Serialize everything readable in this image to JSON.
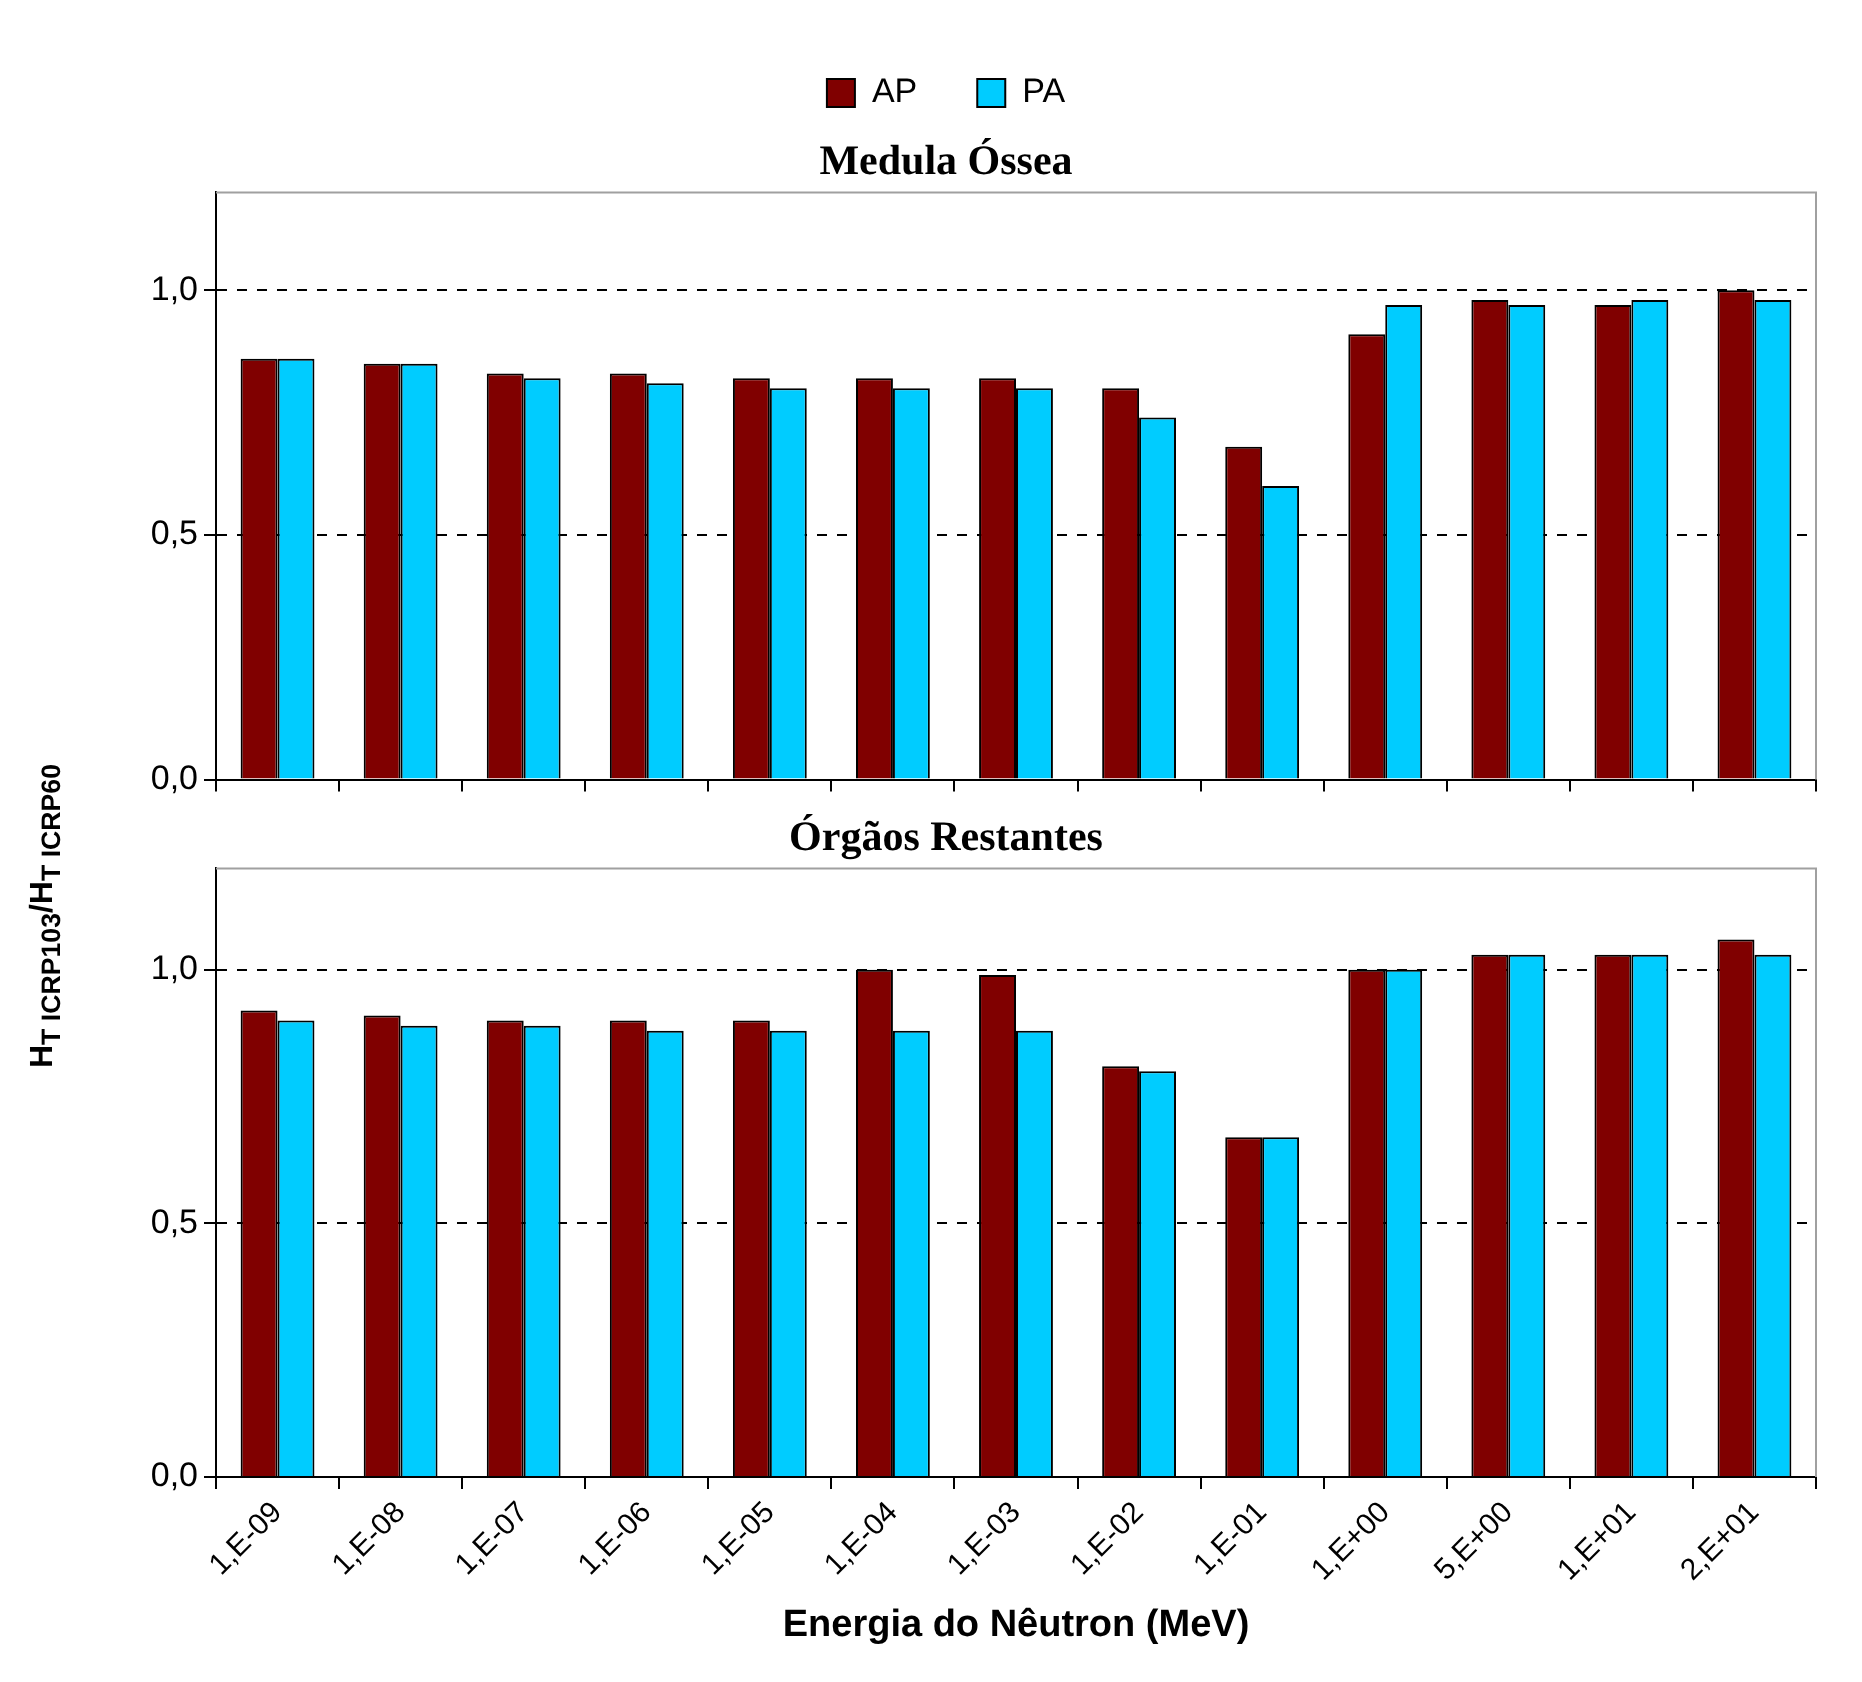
{
  "chart_data": [
    {
      "type": "bar",
      "title": "Medula Óssea",
      "ylabel": "H$_{T ICRP103}$/H$_{T ICRP60}$",
      "categories": [
        "1,E-09",
        "1,E-08",
        "1,E-07",
        "1,E-06",
        "1,E-05",
        "1,E-04",
        "1,E-03",
        "1,E-02",
        "1,E-01",
        "1,E+00",
        "5,E+00",
        "1,E+01",
        "2,E+01"
      ],
      "series": [
        {
          "name": "AP",
          "color": "#800000",
          "values": [
            0.86,
            0.85,
            0.83,
            0.83,
            0.82,
            0.82,
            0.82,
            0.8,
            0.68,
            0.91,
            0.98,
            0.97,
            1.0
          ]
        },
        {
          "name": "PA",
          "color": "#00ccff",
          "values": [
            0.86,
            0.85,
            0.82,
            0.81,
            0.8,
            0.8,
            0.8,
            0.74,
            0.6,
            0.97,
            0.97,
            0.98,
            0.98
          ]
        }
      ],
      "ylim": [
        0,
        1.2
      ],
      "yticks": [
        {
          "value": 0,
          "label": "0,0"
        },
        {
          "value": 0.5,
          "label": "0,5"
        },
        {
          "value": 1,
          "label": "1,0"
        }
      ],
      "grid": "y",
      "legend": "top",
      "tick_labels": "y"
    },
    {
      "type": "bar",
      "title": "Órgãos Restantes",
      "xlabel": "Energia do Nêutron (MeV)",
      "categories": [
        "1,E-09",
        "1,E-08",
        "1,E-07",
        "1,E-06",
        "1,E-05",
        "1,E-04",
        "1,E-03",
        "1,E-02",
        "1,E-01",
        "1,E+00",
        "5,E+00",
        "1,E+01",
        "2,E+01"
      ],
      "series": [
        {
          "color": "#800000",
          "values": [
            0.92,
            0.91,
            0.9,
            0.9,
            0.9,
            1.0,
            0.99,
            0.81,
            0.67,
            1.0,
            1.03,
            1.03,
            1.06
          ]
        },
        {
          "color": "#00ccff",
          "values": [
            0.9,
            0.89,
            0.89,
            0.88,
            0.88,
            0.88,
            0.88,
            0.8,
            0.67,
            1.0,
            1.03,
            1.03,
            1.03
          ]
        }
      ],
      "ylim": [
        0,
        1.2
      ],
      "yticks": [
        {
          "value": 0,
          "label": "0,0"
        },
        {
          "value": 0.5,
          "label": "0,5"
        },
        {
          "value": 1,
          "label": "1,0"
        }
      ],
      "grid": "y"
    }
  ]
}
